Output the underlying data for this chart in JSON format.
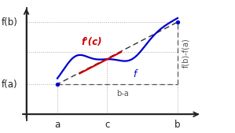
{
  "bg_color": "#ffffff",
  "axis_color": "#222222",
  "curve_color": "#0000cc",
  "tangent_color": "#cc0000",
  "secant_color": "#333333",
  "dotted_color": "#aaaaaa",
  "dash_color": "#555555",
  "a": 0.18,
  "b": 0.88,
  "c": 0.47,
  "fa": 0.3,
  "fb": 0.92,
  "label_a": "a",
  "label_b": "b",
  "label_c": "c",
  "label_fa": "f(a)",
  "label_fb": "f(b)",
  "label_fc_prime": "f'(c)",
  "label_f": "f",
  "label_bma": "b-a",
  "label_frac": "f(b)-f(a)",
  "font_size": 8.5
}
